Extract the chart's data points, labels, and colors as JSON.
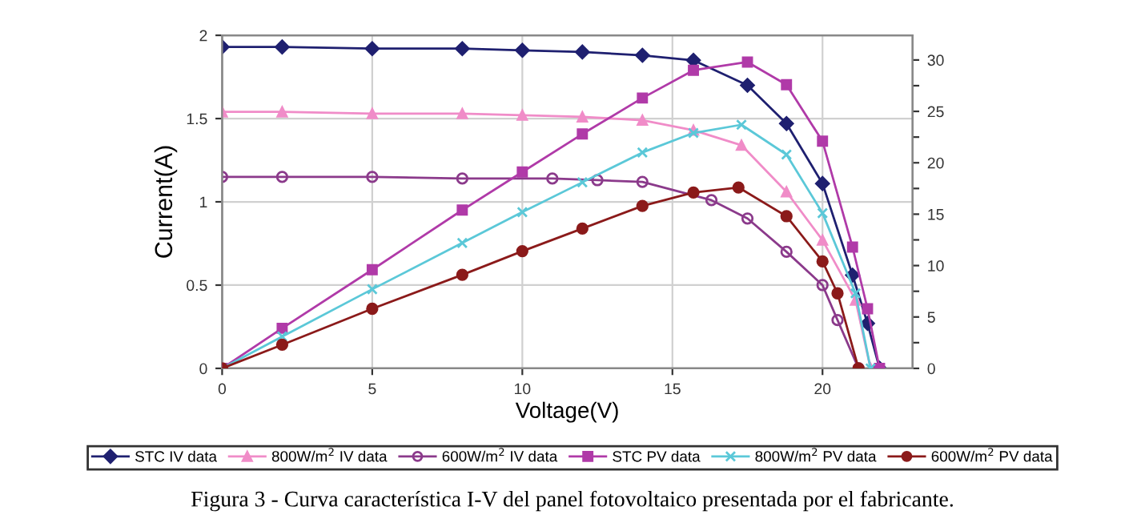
{
  "chart_data": {
    "type": "line",
    "xlabel": "Voltage(V)",
    "ylabel": "Current(A)",
    "xlim": [
      0,
      23
    ],
    "xticks": [
      0,
      5,
      10,
      15,
      20
    ],
    "ylim": [
      0,
      2
    ],
    "yticks": [
      0,
      0.5,
      1,
      1.5,
      2
    ],
    "y2lim": [
      0,
      32.4
    ],
    "y2ticks": [
      0,
      {
        "value": 2.5,
        "label": null
      },
      5,
      {
        "value": 7.5,
        "label": null
      },
      10,
      {
        "value": 12.5,
        "label": null
      },
      15,
      {
        "value": 17.5,
        "label": null
      },
      20,
      {
        "value": 22.5,
        "label": null
      },
      25,
      {
        "value": 27.5,
        "label": null
      },
      30
    ],
    "grid": true,
    "legend": "bottom",
    "line_style": "solid",
    "series": [
      {
        "name": "STC IV data",
        "color": "#1f2070",
        "marker": "diamond",
        "x": [
          0,
          2,
          5,
          8,
          10,
          12,
          14,
          15.7,
          17.5,
          18.8,
          20,
          21,
          21.5,
          21.9
        ],
        "values": [
          1.93,
          1.93,
          1.92,
          1.92,
          1.91,
          1.9,
          1.88,
          1.85,
          1.7,
          1.47,
          1.11,
          0.56,
          0.27,
          0
        ]
      },
      {
        "name": "800W/m$^{2}$ IV data",
        "color": "#f08cc8",
        "marker": "triangle",
        "x": [
          0,
          2,
          5,
          8,
          10,
          12,
          14,
          15.7,
          17.3,
          18.8,
          20,
          21.1,
          21.6
        ],
        "values": [
          1.54,
          1.54,
          1.53,
          1.53,
          1.52,
          1.51,
          1.49,
          1.43,
          1.34,
          1.06,
          0.77,
          0.41,
          0
        ]
      },
      {
        "name": "600W/m$^{2}$ IV data",
        "color": "#8b3a8b",
        "marker": "circle",
        "x": [
          0,
          2,
          5,
          8,
          11,
          12.5,
          14,
          16.3,
          17.5,
          18.8,
          20,
          20.5,
          21.2
        ],
        "values": [
          1.15,
          1.15,
          1.15,
          1.14,
          1.14,
          1.13,
          1.12,
          1.01,
          0.9,
          0.7,
          0.5,
          0.29,
          0
        ]
      },
      {
        "name": "STC PV data",
        "color": "#b03aa8",
        "marker": "square",
        "axis": "y2",
        "x": [
          0,
          2,
          5,
          8,
          10,
          12,
          14,
          15.7,
          17.5,
          18.8,
          20,
          21,
          21.5,
          21.9
        ],
        "values": [
          0,
          3.9,
          9.6,
          15.4,
          19.1,
          22.8,
          26.3,
          29,
          29.8,
          27.6,
          22.1,
          11.8,
          5.8,
          0
        ]
      },
      {
        "name": "800W/m$^{2}$ PV data",
        "color": "#5bc8d8",
        "marker": "cross",
        "axis": "y2",
        "x": [
          0,
          2,
          5,
          8,
          10,
          12,
          14,
          15.7,
          17.3,
          18.8,
          20,
          21.1,
          21.6
        ],
        "values": [
          0,
          3.1,
          7.7,
          12.2,
          15.2,
          18.1,
          21,
          22.9,
          23.7,
          20.8,
          15.1,
          7.3,
          0
        ]
      },
      {
        "name": "600W/m$^{2}$ PV data",
        "color": "#8b1a1a",
        "marker": "circle",
        "axis": "y2",
        "x": [
          0,
          2,
          5,
          8,
          10,
          12,
          14,
          15.7,
          17.2,
          18.8,
          20,
          20.5,
          21.2
        ],
        "values": [
          0,
          2.3,
          5.8,
          9.1,
          11.4,
          13.6,
          15.8,
          17.1,
          17.6,
          14.8,
          10.4,
          7.3,
          0
        ]
      }
    ],
    "annotations": [
      "Figura 3 - Curva característica I-V del panel fotovoltaico presentada por el fabricante."
    ]
  }
}
